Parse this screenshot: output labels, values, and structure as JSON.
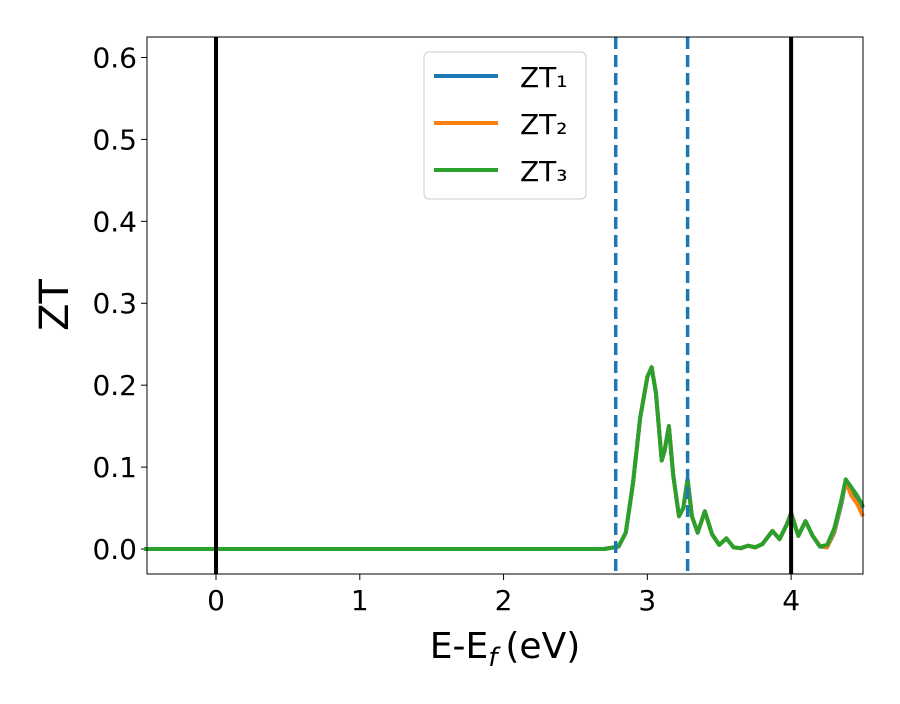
{
  "chart_data": {
    "type": "line",
    "x_label": [
      "E-E",
      "f",
      "(eV)"
    ],
    "y_label": "ZT",
    "x": [
      -0.5,
      2.7,
      2.8,
      2.85,
      2.9,
      2.95,
      3.0,
      3.03,
      3.06,
      3.1,
      3.12,
      3.15,
      3.18,
      3.22,
      3.25,
      3.28,
      3.31,
      3.35,
      3.4,
      3.45,
      3.5,
      3.55,
      3.6,
      3.65,
      3.7,
      3.75,
      3.8,
      3.87,
      3.92,
      3.97,
      4.0,
      4.05,
      4.1,
      4.15,
      4.2,
      4.25,
      4.3,
      4.35,
      4.38,
      4.42,
      4.46,
      4.5
    ],
    "series": [
      {
        "name": "ZT₁",
        "color": "#1f77b4",
        "values": [
          0,
          0,
          0.003,
          0.02,
          0.08,
          0.16,
          0.21,
          0.222,
          0.19,
          0.108,
          0.12,
          0.15,
          0.09,
          0.04,
          0.05,
          0.085,
          0.04,
          0.02,
          0.046,
          0.018,
          0.005,
          0.013,
          0.002,
          0.001,
          0.004,
          0.002,
          0.006,
          0.022,
          0.012,
          0.03,
          0.044,
          0.016,
          0.034,
          0.016,
          0.003,
          0.002,
          0.02,
          0.055,
          0.083,
          0.075,
          0.06,
          0.05
        ]
      },
      {
        "name": "ZT₂",
        "color": "#ff7f0e",
        "values": [
          0,
          0,
          0.003,
          0.02,
          0.08,
          0.16,
          0.21,
          0.222,
          0.19,
          0.108,
          0.12,
          0.15,
          0.09,
          0.04,
          0.05,
          0.085,
          0.04,
          0.02,
          0.046,
          0.018,
          0.005,
          0.013,
          0.002,
          0.001,
          0.004,
          0.002,
          0.006,
          0.022,
          0.012,
          0.03,
          0.044,
          0.016,
          0.034,
          0.016,
          0.004,
          0.002,
          0.022,
          0.058,
          0.082,
          0.065,
          0.055,
          0.04
        ]
      },
      {
        "name": "ZT₃",
        "color": "#2ca02c",
        "values": [
          0,
          0,
          0.003,
          0.02,
          0.08,
          0.16,
          0.21,
          0.222,
          0.19,
          0.108,
          0.12,
          0.15,
          0.09,
          0.04,
          0.05,
          0.085,
          0.04,
          0.02,
          0.046,
          0.018,
          0.005,
          0.013,
          0.002,
          0.001,
          0.004,
          0.002,
          0.006,
          0.022,
          0.012,
          0.03,
          0.044,
          0.016,
          0.034,
          0.016,
          0.003,
          0.005,
          0.025,
          0.06,
          0.085,
          0.075,
          0.065,
          0.052
        ]
      }
    ],
    "vlines": [
      {
        "x": 0,
        "color": "#000000",
        "style": "solid"
      },
      {
        "x": 4,
        "color": "#000000",
        "style": "solid"
      },
      {
        "x": 2.78,
        "color": "#1f77b4",
        "style": "dashed"
      },
      {
        "x": 3.28,
        "color": "#1f77b4",
        "style": "dashed"
      }
    ],
    "xlim": [
      -0.48,
      4.5
    ],
    "ylim": [
      -0.0305,
      0.625
    ],
    "xticks": [
      0,
      1,
      2,
      3,
      4
    ],
    "yticks": [
      {
        "value": 0,
        "label": "0.0"
      },
      0.1,
      0.2,
      0.3,
      0.4,
      0.5,
      0.6
    ],
    "grid": false,
    "legend": "upper center"
  }
}
